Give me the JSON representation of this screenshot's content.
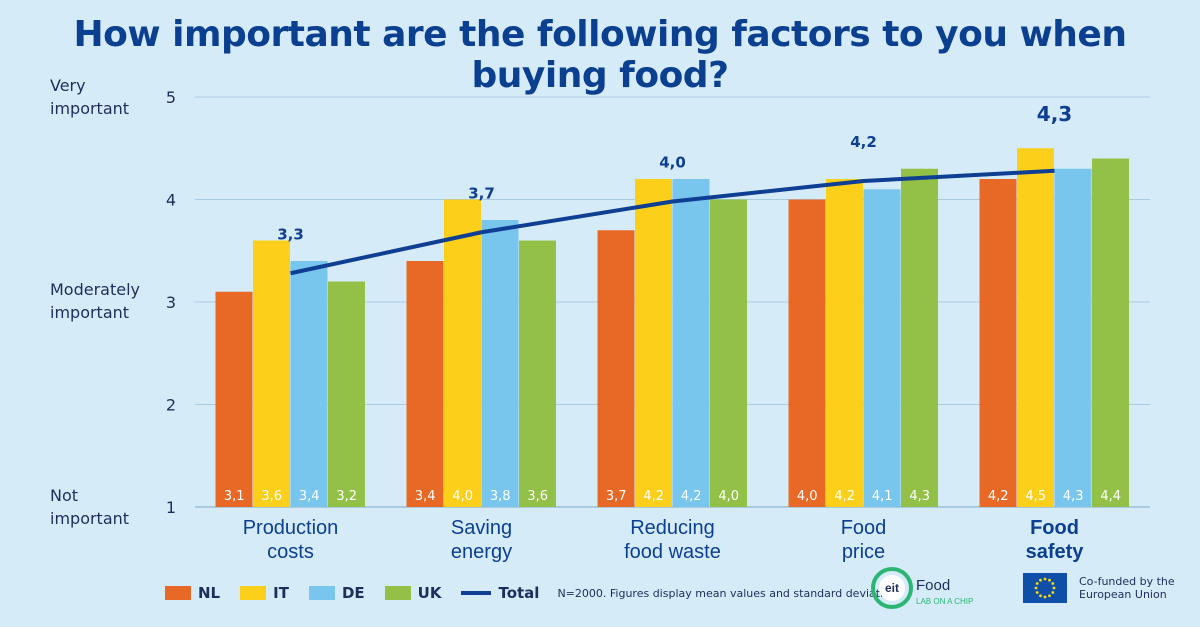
{
  "title": "How important are the following factors to you when buying food?",
  "y_descriptors": {
    "very": [
      "Very",
      "important"
    ],
    "moderate": [
      "Moderately",
      "important"
    ],
    "not": [
      "Not",
      "important"
    ]
  },
  "legend_note": "N=2000. Figures display mean values and standard deviation.",
  "logos": {
    "eit_mark": "eit",
    "eit_word": "Food",
    "eit_sub": "LAB ON A CHIP",
    "eu_text_1": "Co-funded by the",
    "eu_text_2": "European Union"
  },
  "colors": {
    "NL": "#e86825",
    "IT": "#fccf1a",
    "DE": "#78c5ee",
    "UK": "#93c047",
    "Total": "#0f3f92",
    "title": "#0b3f8f"
  },
  "chart_data": {
    "type": "bar",
    "categories": [
      [
        "Production",
        "costs"
      ],
      [
        "Saving",
        "energy"
      ],
      [
        "Reducing",
        "food waste"
      ],
      [
        "Food",
        "price"
      ],
      [
        "Food",
        "safety"
      ]
    ],
    "series": [
      {
        "name": "NL",
        "values": [
          3.1,
          3.4,
          3.7,
          4.0,
          4.2
        ],
        "labels": [
          "3,1",
          "3,4",
          "3,7",
          "4,0",
          "4,2"
        ]
      },
      {
        "name": "IT",
        "values": [
          3.6,
          4.0,
          4.2,
          4.2,
          4.5
        ],
        "labels": [
          "3,6",
          "4,0",
          "4,2",
          "4,2",
          "4,5"
        ]
      },
      {
        "name": "DE",
        "values": [
          3.4,
          3.8,
          4.2,
          4.1,
          4.3
        ],
        "labels": [
          "3,4",
          "3,8",
          "4,2",
          "4,1",
          "4,3"
        ]
      },
      {
        "name": "UK",
        "values": [
          3.2,
          3.6,
          4.0,
          4.3,
          4.4
        ],
        "labels": [
          "3,2",
          "3,6",
          "4,0",
          "4,3",
          "4,4"
        ]
      }
    ],
    "total": {
      "name": "Total",
      "values": [
        3.3,
        3.7,
        4.0,
        4.2,
        4.3
      ],
      "labels": [
        "3,3",
        "3,7",
        "4,0",
        "4,2",
        "4,3"
      ]
    },
    "yticks": [
      1,
      2,
      3,
      4,
      5
    ],
    "ylim": [
      1,
      5
    ],
    "grid": true,
    "legend_position": "bottom-left"
  }
}
